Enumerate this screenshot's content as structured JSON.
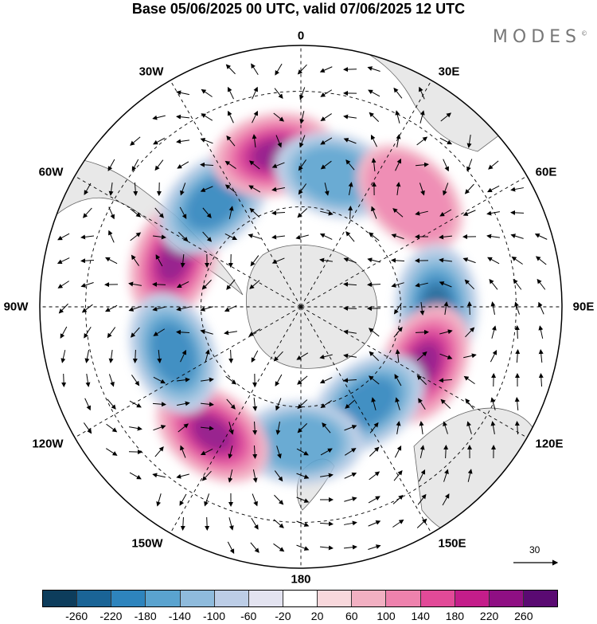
{
  "title": "Base 05/06/2025 00 UTC, valid 07/06/2025 12 UTC",
  "brand": "MODES",
  "brand_mark": "©",
  "longitude_labels": {
    "lon_0": "0",
    "lon_30e": "30E",
    "lon_60e": "60E",
    "lon_90e": "90E",
    "lon_120e": "120E",
    "lon_150e": "150E",
    "lon_180": "180",
    "lon_150w": "150W",
    "lon_120w": "120W",
    "lon_90w": "90W",
    "lon_60w": "60W",
    "lon_30w": "30W"
  },
  "vector_scale": "30",
  "colorbar": {
    "colors": [
      "#0d3d5c",
      "#1a6496",
      "#2e84bd",
      "#5aa3cf",
      "#8fbbdc",
      "#bccde6",
      "#e3e3f0",
      "#ffffff",
      "#f8d8dc",
      "#f2b0c2",
      "#ee82ad",
      "#e24a98",
      "#c41d8a",
      "#8f0f83",
      "#5a0a72"
    ],
    "ticks": [
      "-260",
      "-220",
      "-180",
      "-140",
      "-100",
      "-60",
      "-20",
      "20",
      "60",
      "100",
      "140",
      "180",
      "220",
      "260"
    ]
  },
  "map": {
    "projection": "south-polar-stereographic",
    "land_color": "#e8e8e8",
    "anomalies": [
      {
        "lon": -70,
        "lat": -50,
        "value": 230
      },
      {
        "lon": -40,
        "lat": -50,
        "value": -190
      },
      {
        "lon": -10,
        "lat": -45,
        "value": 220
      },
      {
        "lon": 15,
        "lat": -50,
        "value": -130
      },
      {
        "lon": 45,
        "lat": -45,
        "value": 110
      },
      {
        "lon": 90,
        "lat": -50,
        "value": -200
      },
      {
        "lon": 115,
        "lat": -50,
        "value": 210
      },
      {
        "lon": 145,
        "lat": -55,
        "value": -160
      },
      {
        "lon": 180,
        "lat": -50,
        "value": -150
      },
      {
        "lon": -145,
        "lat": -45,
        "value": 210
      },
      {
        "lon": -110,
        "lat": -50,
        "value": -170
      }
    ]
  }
}
